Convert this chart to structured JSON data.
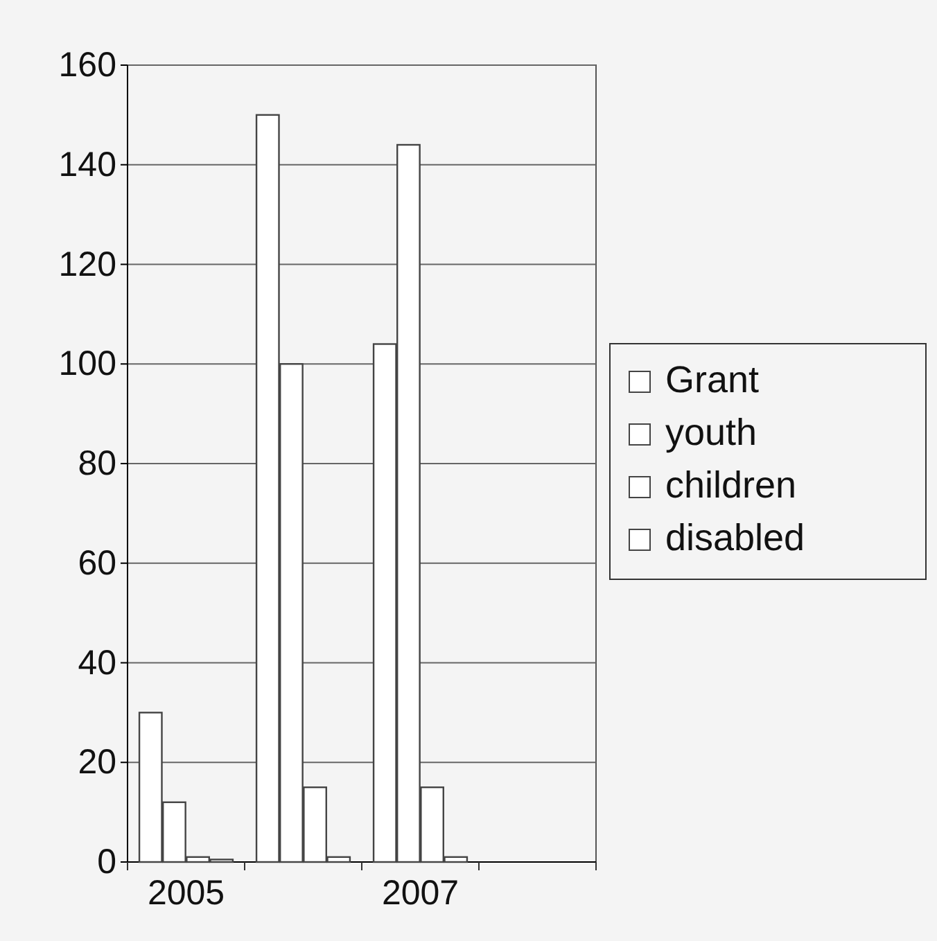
{
  "chart_data": {
    "type": "bar",
    "categories": [
      "2005",
      null,
      "2007",
      null
    ],
    "series": [
      {
        "name": "Grant",
        "color": "#ffffff",
        "values": [
          30,
          150,
          104,
          null
        ]
      },
      {
        "name": "youth",
        "color": "#ffffff",
        "values": [
          12,
          100,
          144,
          null
        ]
      },
      {
        "name": "children",
        "color": "#ffffff",
        "values": [
          1,
          15,
          15,
          null
        ]
      },
      {
        "name": "disabled",
        "color": "#ffffff",
        "values": [
          0.5,
          1,
          1,
          null
        ]
      }
    ],
    "ylim": [
      0,
      160
    ],
    "yticks": [
      0,
      20,
      40,
      60,
      80,
      100,
      120,
      140,
      160
    ],
    "grid": "y",
    "legend": "right"
  }
}
